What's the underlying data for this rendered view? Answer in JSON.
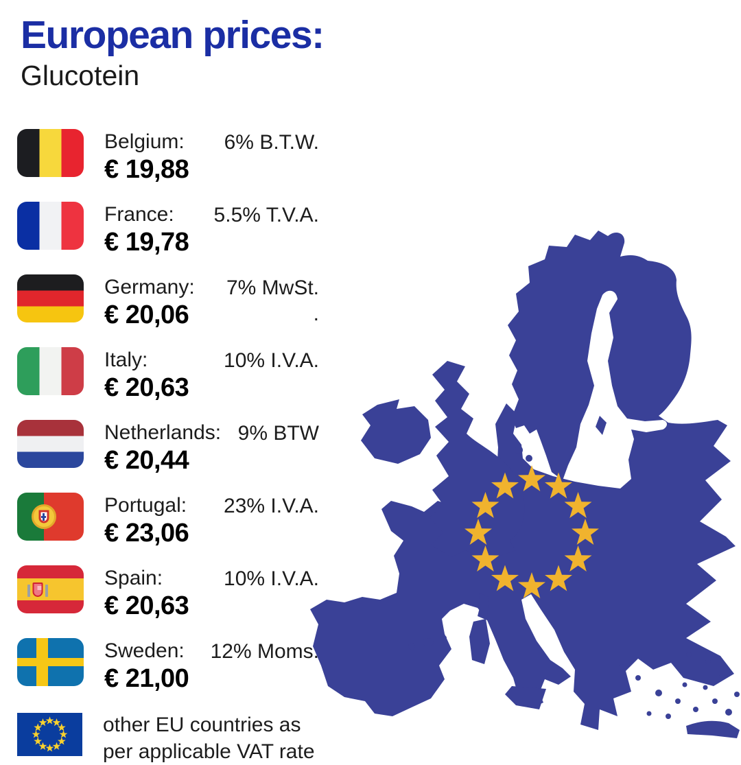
{
  "title": "European prices:",
  "subtitle": "Glucotein",
  "colors": {
    "title_blue": "#1b2ea4",
    "map_blue": "#3a4197",
    "star_gold": "#f0b32e",
    "eu_flag_blue": "#0a3d9e",
    "eu_star_gold": "#f8d12e",
    "text_black": "#1c1c1c"
  },
  "rows": [
    {
      "flag": "belgium-flag",
      "country": "Belgium:",
      "price": "€ 19,88",
      "vat": "6% B.T.W."
    },
    {
      "flag": "france-flag",
      "country": "France:",
      "price": "€ 19,78",
      "vat": "5.5% T.V.A."
    },
    {
      "flag": "germany-flag",
      "country": "Germany:",
      "price": "€ 20,06",
      "vat": "7% MwSt.\n."
    },
    {
      "flag": "italy-flag",
      "country": "Italy:",
      "price": "€ 20,63",
      "vat": "10% I.V.A."
    },
    {
      "flag": "netherlands-flag",
      "country": "Netherlands:",
      "price": "€ 20,44",
      "vat": "9% BTW"
    },
    {
      "flag": "portugal-flag",
      "country": "Portugal:",
      "price": "€ 23,06",
      "vat": "23% I.V.A."
    },
    {
      "flag": "spain-flag",
      "country": "Spain:",
      "price": "€ 20,63",
      "vat": "10% I.V.A."
    },
    {
      "flag": "sweden-flag",
      "country": "Sweden:",
      "price": "€ 21,00",
      "vat": "12% Moms."
    }
  ],
  "footer": {
    "flag": "eu-flag",
    "text": "other EU countries as per applicable VAT rate"
  },
  "map": {
    "label": "map-of-europe-with-eu-stars",
    "stars": 12
  }
}
